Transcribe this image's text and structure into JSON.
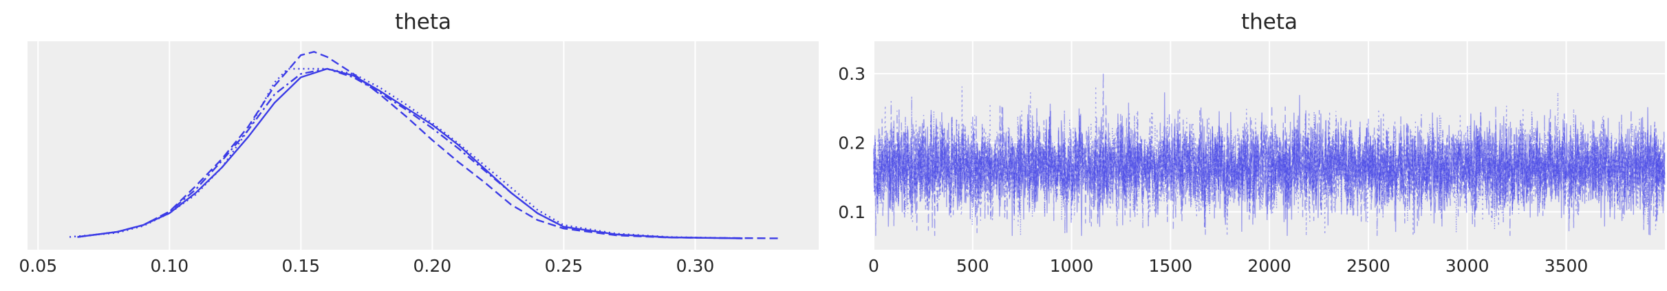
{
  "chart_data": [
    {
      "type": "line",
      "title": "theta",
      "xlabel": "",
      "ylabel": "",
      "xlim": [
        0.046,
        0.347
      ],
      "x_ticks": [
        "0.05",
        "0.10",
        "0.15",
        "0.20",
        "0.25",
        "0.30"
      ],
      "x_tick_values": [
        0.05,
        0.1,
        0.15,
        0.2,
        0.25,
        0.3
      ],
      "y_ticks": [],
      "grid": true,
      "color": "#3b3be6",
      "series": [
        {
          "linestyle": "solid",
          "x": [
            0.065,
            0.08,
            0.09,
            0.1,
            0.11,
            0.12,
            0.13,
            0.14,
            0.15,
            0.16,
            0.17,
            0.18,
            0.19,
            0.2,
            0.21,
            0.22,
            0.23,
            0.24,
            0.25,
            0.27,
            0.29,
            0.318
          ],
          "y": [
            0.01,
            0.04,
            0.08,
            0.15,
            0.27,
            0.42,
            0.6,
            0.8,
            0.95,
            1.0,
            0.96,
            0.87,
            0.77,
            0.67,
            0.55,
            0.41,
            0.27,
            0.15,
            0.07,
            0.025,
            0.008,
            0.002
          ]
        },
        {
          "linestyle": "dashed",
          "x": [
            0.065,
            0.08,
            0.09,
            0.1,
            0.11,
            0.12,
            0.13,
            0.14,
            0.15,
            0.155,
            0.16,
            0.17,
            0.18,
            0.19,
            0.2,
            0.21,
            0.22,
            0.23,
            0.24,
            0.25,
            0.27,
            0.29,
            0.332
          ],
          "y": [
            0.01,
            0.04,
            0.08,
            0.16,
            0.31,
            0.47,
            0.66,
            0.9,
            1.08,
            1.1,
            1.07,
            0.97,
            0.85,
            0.72,
            0.58,
            0.45,
            0.33,
            0.2,
            0.11,
            0.06,
            0.02,
            0.007,
            0.002
          ]
        },
        {
          "linestyle": "dotted",
          "x": [
            0.062,
            0.08,
            0.09,
            0.1,
            0.11,
            0.12,
            0.13,
            0.14,
            0.145,
            0.16,
            0.17,
            0.18,
            0.19,
            0.2,
            0.21,
            0.22,
            0.23,
            0.24,
            0.25,
            0.27,
            0.29,
            0.318
          ],
          "y": [
            0.01,
            0.035,
            0.075,
            0.15,
            0.26,
            0.42,
            0.64,
            0.92,
            1.0,
            1.0,
            0.97,
            0.89,
            0.79,
            0.68,
            0.56,
            0.43,
            0.3,
            0.17,
            0.08,
            0.03,
            0.01,
            0.003
          ]
        },
        {
          "linestyle": "dashdot",
          "x": [
            0.065,
            0.08,
            0.09,
            0.1,
            0.11,
            0.12,
            0.13,
            0.14,
            0.15,
            0.16,
            0.17,
            0.18,
            0.19,
            0.2,
            0.21,
            0.22,
            0.23,
            0.24,
            0.25,
            0.27,
            0.29,
            0.318
          ],
          "y": [
            0.01,
            0.04,
            0.08,
            0.16,
            0.29,
            0.46,
            0.64,
            0.85,
            0.97,
            1.0,
            0.95,
            0.86,
            0.76,
            0.65,
            0.53,
            0.4,
            0.27,
            0.15,
            0.07,
            0.025,
            0.008,
            0.002
          ]
        }
      ]
    },
    {
      "type": "line",
      "title": "theta",
      "xlabel": "",
      "ylabel": "",
      "xlim": [
        0,
        3999
      ],
      "ylim": [
        0.045,
        0.347
      ],
      "x_ticks": [
        "0",
        "500",
        "1000",
        "1500",
        "2000",
        "2500",
        "3000",
        "3500"
      ],
      "x_tick_values": [
        0,
        500,
        1000,
        1500,
        2000,
        2500,
        3000,
        3500
      ],
      "y_ticks": [
        "0.1",
        "0.2",
        "0.3"
      ],
      "y_tick_values": [
        0.1,
        0.2,
        0.3
      ],
      "grid": true,
      "color": "#3b3be6",
      "series": [
        {
          "linestyle": "solid",
          "mean": 0.165,
          "sd": 0.033,
          "iterations": 4000
        },
        {
          "linestyle": "dashed",
          "mean": 0.163,
          "sd": 0.032,
          "iterations": 4000
        },
        {
          "linestyle": "dotted",
          "mean": 0.164,
          "sd": 0.033,
          "iterations": 4000
        },
        {
          "linestyle": "dashdot",
          "mean": 0.165,
          "sd": 0.032,
          "iterations": 4000
        }
      ]
    }
  ]
}
